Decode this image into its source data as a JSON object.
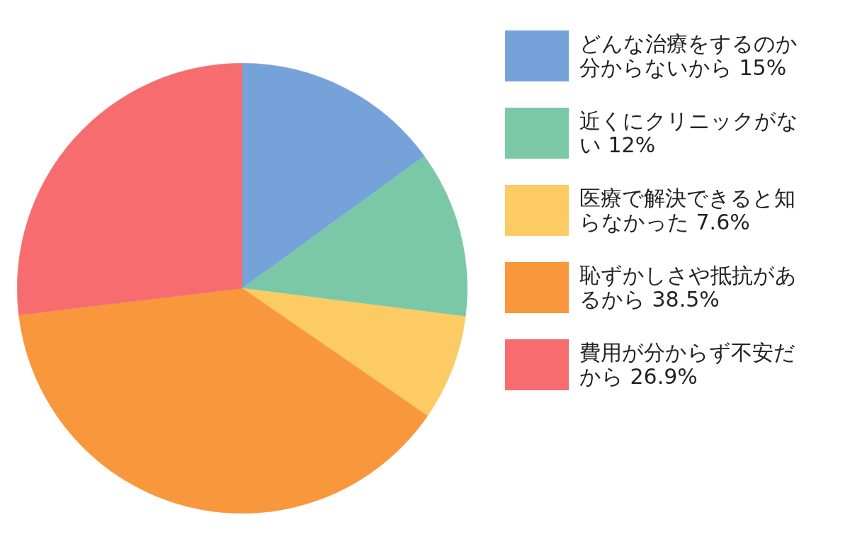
{
  "chart_data": {
    "type": "pie",
    "categories": [
      "どんな治療をするのか分からないから",
      "近くにクリニックがない",
      "医療で解決できると知らなかった",
      "恥ずかしさや抵抗があるから",
      "費用が分からず不安だから"
    ],
    "values": [
      15,
      12,
      7.6,
      38.5,
      26.9
    ],
    "value_labels": [
      "15%",
      "12%",
      "7.6%",
      "38.5%",
      "26.9%"
    ],
    "colors": [
      "#75a3d9",
      "#7bc8a9",
      "#fccb64",
      "#f9973d",
      "#f76d6f"
    ],
    "legend": "right"
  }
}
